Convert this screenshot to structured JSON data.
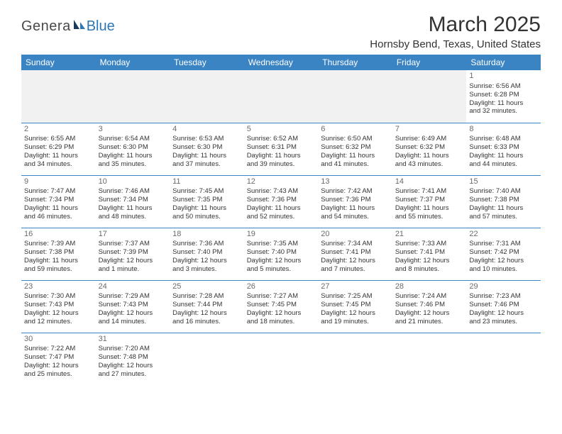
{
  "brand": {
    "part1": "Genera",
    "part2": "Blue"
  },
  "title": "March 2025",
  "location": "Hornsby Bend, Texas, United States",
  "colors": {
    "header_bg": "#3b84c4",
    "header_text": "#ffffff",
    "rule": "#3b84c4",
    "empty_bg": "#f1f1f1",
    "body_text": "#343434",
    "daynum": "#6b6b6b",
    "page_bg": "#ffffff"
  },
  "fonts": {
    "title_pt": 30,
    "location_pt": 15,
    "th_pt": 12,
    "cell_pt": 9.5,
    "daynum_pt": 11
  },
  "weekdays": [
    "Sunday",
    "Monday",
    "Tuesday",
    "Wednesday",
    "Thursday",
    "Friday",
    "Saturday"
  ],
  "weeks": [
    [
      null,
      null,
      null,
      null,
      null,
      null,
      {
        "n": "1",
        "sr": "Sunrise: 6:56 AM",
        "ss": "Sunset: 6:28 PM",
        "d1": "Daylight: 11 hours",
        "d2": "and 32 minutes."
      }
    ],
    [
      {
        "n": "2",
        "sr": "Sunrise: 6:55 AM",
        "ss": "Sunset: 6:29 PM",
        "d1": "Daylight: 11 hours",
        "d2": "and 34 minutes."
      },
      {
        "n": "3",
        "sr": "Sunrise: 6:54 AM",
        "ss": "Sunset: 6:30 PM",
        "d1": "Daylight: 11 hours",
        "d2": "and 35 minutes."
      },
      {
        "n": "4",
        "sr": "Sunrise: 6:53 AM",
        "ss": "Sunset: 6:30 PM",
        "d1": "Daylight: 11 hours",
        "d2": "and 37 minutes."
      },
      {
        "n": "5",
        "sr": "Sunrise: 6:52 AM",
        "ss": "Sunset: 6:31 PM",
        "d1": "Daylight: 11 hours",
        "d2": "and 39 minutes."
      },
      {
        "n": "6",
        "sr": "Sunrise: 6:50 AM",
        "ss": "Sunset: 6:32 PM",
        "d1": "Daylight: 11 hours",
        "d2": "and 41 minutes."
      },
      {
        "n": "7",
        "sr": "Sunrise: 6:49 AM",
        "ss": "Sunset: 6:32 PM",
        "d1": "Daylight: 11 hours",
        "d2": "and 43 minutes."
      },
      {
        "n": "8",
        "sr": "Sunrise: 6:48 AM",
        "ss": "Sunset: 6:33 PM",
        "d1": "Daylight: 11 hours",
        "d2": "and 44 minutes."
      }
    ],
    [
      {
        "n": "9",
        "sr": "Sunrise: 7:47 AM",
        "ss": "Sunset: 7:34 PM",
        "d1": "Daylight: 11 hours",
        "d2": "and 46 minutes."
      },
      {
        "n": "10",
        "sr": "Sunrise: 7:46 AM",
        "ss": "Sunset: 7:34 PM",
        "d1": "Daylight: 11 hours",
        "d2": "and 48 minutes."
      },
      {
        "n": "11",
        "sr": "Sunrise: 7:45 AM",
        "ss": "Sunset: 7:35 PM",
        "d1": "Daylight: 11 hours",
        "d2": "and 50 minutes."
      },
      {
        "n": "12",
        "sr": "Sunrise: 7:43 AM",
        "ss": "Sunset: 7:36 PM",
        "d1": "Daylight: 11 hours",
        "d2": "and 52 minutes."
      },
      {
        "n": "13",
        "sr": "Sunrise: 7:42 AM",
        "ss": "Sunset: 7:36 PM",
        "d1": "Daylight: 11 hours",
        "d2": "and 54 minutes."
      },
      {
        "n": "14",
        "sr": "Sunrise: 7:41 AM",
        "ss": "Sunset: 7:37 PM",
        "d1": "Daylight: 11 hours",
        "d2": "and 55 minutes."
      },
      {
        "n": "15",
        "sr": "Sunrise: 7:40 AM",
        "ss": "Sunset: 7:38 PM",
        "d1": "Daylight: 11 hours",
        "d2": "and 57 minutes."
      }
    ],
    [
      {
        "n": "16",
        "sr": "Sunrise: 7:39 AM",
        "ss": "Sunset: 7:38 PM",
        "d1": "Daylight: 11 hours",
        "d2": "and 59 minutes."
      },
      {
        "n": "17",
        "sr": "Sunrise: 7:37 AM",
        "ss": "Sunset: 7:39 PM",
        "d1": "Daylight: 12 hours",
        "d2": "and 1 minute."
      },
      {
        "n": "18",
        "sr": "Sunrise: 7:36 AM",
        "ss": "Sunset: 7:40 PM",
        "d1": "Daylight: 12 hours",
        "d2": "and 3 minutes."
      },
      {
        "n": "19",
        "sr": "Sunrise: 7:35 AM",
        "ss": "Sunset: 7:40 PM",
        "d1": "Daylight: 12 hours",
        "d2": "and 5 minutes."
      },
      {
        "n": "20",
        "sr": "Sunrise: 7:34 AM",
        "ss": "Sunset: 7:41 PM",
        "d1": "Daylight: 12 hours",
        "d2": "and 7 minutes."
      },
      {
        "n": "21",
        "sr": "Sunrise: 7:33 AM",
        "ss": "Sunset: 7:41 PM",
        "d1": "Daylight: 12 hours",
        "d2": "and 8 minutes."
      },
      {
        "n": "22",
        "sr": "Sunrise: 7:31 AM",
        "ss": "Sunset: 7:42 PM",
        "d1": "Daylight: 12 hours",
        "d2": "and 10 minutes."
      }
    ],
    [
      {
        "n": "23",
        "sr": "Sunrise: 7:30 AM",
        "ss": "Sunset: 7:43 PM",
        "d1": "Daylight: 12 hours",
        "d2": "and 12 minutes."
      },
      {
        "n": "24",
        "sr": "Sunrise: 7:29 AM",
        "ss": "Sunset: 7:43 PM",
        "d1": "Daylight: 12 hours",
        "d2": "and 14 minutes."
      },
      {
        "n": "25",
        "sr": "Sunrise: 7:28 AM",
        "ss": "Sunset: 7:44 PM",
        "d1": "Daylight: 12 hours",
        "d2": "and 16 minutes."
      },
      {
        "n": "26",
        "sr": "Sunrise: 7:27 AM",
        "ss": "Sunset: 7:45 PM",
        "d1": "Daylight: 12 hours",
        "d2": "and 18 minutes."
      },
      {
        "n": "27",
        "sr": "Sunrise: 7:25 AM",
        "ss": "Sunset: 7:45 PM",
        "d1": "Daylight: 12 hours",
        "d2": "and 19 minutes."
      },
      {
        "n": "28",
        "sr": "Sunrise: 7:24 AM",
        "ss": "Sunset: 7:46 PM",
        "d1": "Daylight: 12 hours",
        "d2": "and 21 minutes."
      },
      {
        "n": "29",
        "sr": "Sunrise: 7:23 AM",
        "ss": "Sunset: 7:46 PM",
        "d1": "Daylight: 12 hours",
        "d2": "and 23 minutes."
      }
    ],
    [
      {
        "n": "30",
        "sr": "Sunrise: 7:22 AM",
        "ss": "Sunset: 7:47 PM",
        "d1": "Daylight: 12 hours",
        "d2": "and 25 minutes."
      },
      {
        "n": "31",
        "sr": "Sunrise: 7:20 AM",
        "ss": "Sunset: 7:48 PM",
        "d1": "Daylight: 12 hours",
        "d2": "and 27 minutes."
      },
      null,
      null,
      null,
      null,
      null
    ]
  ]
}
